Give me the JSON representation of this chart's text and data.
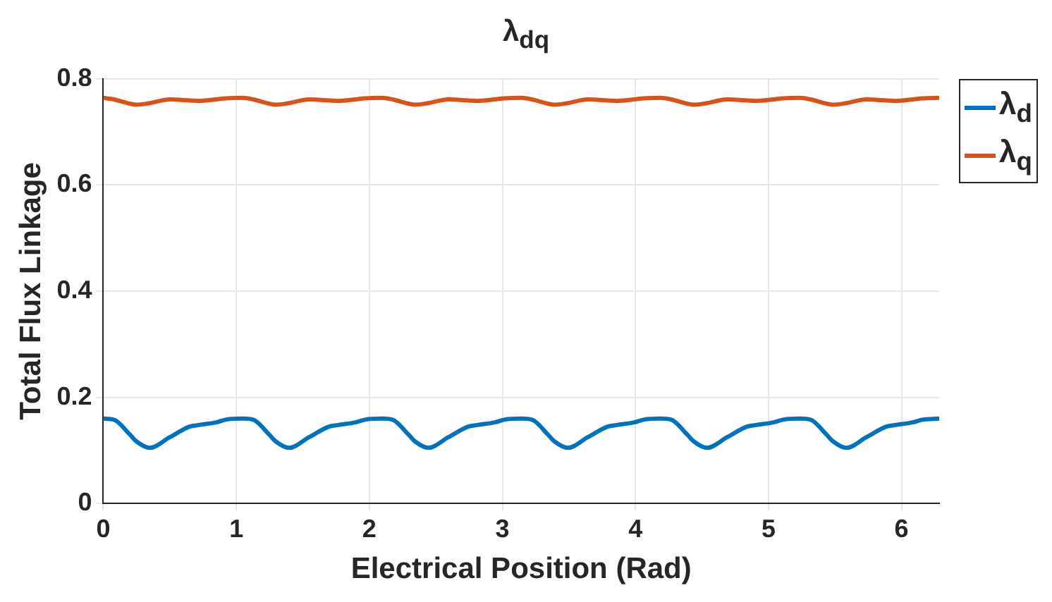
{
  "chart_data": {
    "type": "line",
    "title": "λ$_{dq}$",
    "xlabel": "Electrical Position (Rad)",
    "ylabel": "Total Flux Linkage",
    "x": [
      0,
      0.08,
      0.2,
      0.25,
      0.35,
      0.5,
      0.65,
      0.72,
      0.85,
      0.92,
      1.047,
      1.127,
      1.247,
      1.297,
      1.397,
      1.547,
      1.697,
      1.767,
      1.897,
      1.967,
      2.094,
      2.174,
      2.294,
      2.344,
      2.444,
      2.594,
      2.744,
      2.814,
      2.944,
      3.014,
      3.142,
      3.222,
      3.342,
      3.392,
      3.492,
      3.642,
      3.792,
      3.862,
      3.992,
      4.062,
      4.189,
      4.269,
      4.389,
      4.439,
      4.539,
      4.689,
      4.839,
      4.909,
      5.039,
      5.109,
      5.236,
      5.316,
      5.436,
      5.486,
      5.586,
      5.736,
      5.886,
      5.956,
      6.086,
      6.156,
      6.283
    ],
    "series": [
      {
        "name": "λ$_{d}$",
        "color": "#0072bd",
        "values": [
          0.16,
          0.158,
          0.13,
          0.117,
          0.105,
          0.125,
          0.145,
          0.148,
          0.153,
          0.158,
          0.16,
          0.158,
          0.13,
          0.117,
          0.105,
          0.125,
          0.145,
          0.148,
          0.153,
          0.158,
          0.16,
          0.158,
          0.13,
          0.117,
          0.105,
          0.125,
          0.145,
          0.148,
          0.153,
          0.158,
          0.16,
          0.158,
          0.13,
          0.117,
          0.105,
          0.125,
          0.145,
          0.148,
          0.153,
          0.158,
          0.16,
          0.158,
          0.13,
          0.117,
          0.105,
          0.125,
          0.145,
          0.148,
          0.153,
          0.158,
          0.16,
          0.158,
          0.13,
          0.117,
          0.105,
          0.125,
          0.145,
          0.148,
          0.153,
          0.158,
          0.16
        ]
      },
      {
        "name": "λ$_{q}$",
        "color": "#d95319",
        "values": [
          0.764,
          0.761,
          0.753,
          0.751,
          0.754,
          0.761,
          0.759,
          0.758,
          0.761,
          0.763,
          0.764,
          0.761,
          0.753,
          0.751,
          0.754,
          0.761,
          0.759,
          0.758,
          0.761,
          0.763,
          0.764,
          0.761,
          0.753,
          0.751,
          0.754,
          0.761,
          0.759,
          0.758,
          0.761,
          0.763,
          0.764,
          0.761,
          0.753,
          0.751,
          0.754,
          0.761,
          0.759,
          0.758,
          0.761,
          0.763,
          0.764,
          0.761,
          0.753,
          0.751,
          0.754,
          0.761,
          0.759,
          0.758,
          0.761,
          0.763,
          0.764,
          0.761,
          0.753,
          0.751,
          0.754,
          0.761,
          0.759,
          0.758,
          0.761,
          0.763,
          0.764
        ]
      }
    ],
    "xlim": [
      0,
      6.283
    ],
    "xticks": [
      0,
      1,
      2,
      3,
      4,
      5,
      6
    ],
    "ylim": [
      0,
      0.8
    ],
    "yticks": [
      0,
      0.2,
      0.4,
      0.6,
      0.8
    ],
    "grid": true,
    "legend": "top right",
    "marker": "none",
    "line_style": "solid"
  }
}
